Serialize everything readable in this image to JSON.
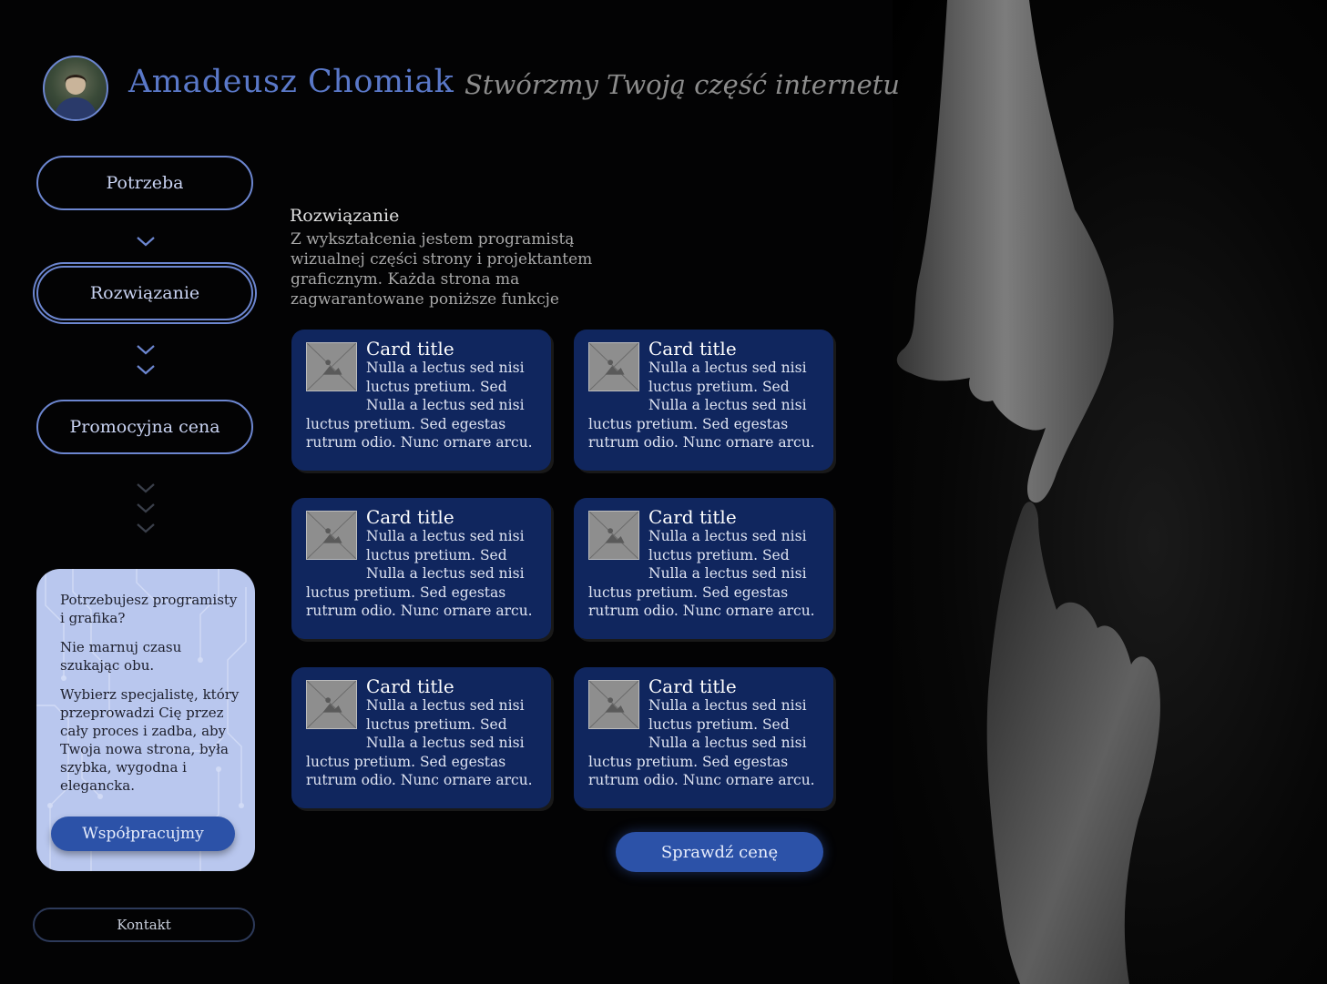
{
  "header": {
    "name": "Amadeusz Chomiak",
    "tagline": "Stwórzmy Twoją część internetu"
  },
  "nav": {
    "items": [
      {
        "label": "Potrzeba"
      },
      {
        "label": "Rozwiązanie"
      },
      {
        "label": "Promocyjna cena"
      }
    ],
    "active": "Rozwiązanie"
  },
  "promo": {
    "paragraphs": [
      "Potrzebujesz programisty i grafika?",
      "Nie marnuj czasu szukając obu.",
      "Wybierz specjalistę, który przeprowadzi Cię przez cały proces i zadba, aby Twoja nowa strona, była szybka, wygodna i elegancka."
    ],
    "button_label": "Współpracujmy"
  },
  "contact_label": "Kontakt",
  "main": {
    "title": "Rozwiązanie",
    "description": "Z wykształcenia jestem programistą wizualnej części strony i projektantem graficznym. Każda strona ma zagwarantowane poniższe funkcje",
    "cards": [
      {
        "title": "Card title",
        "text": "Nulla a lectus sed nisi luctus pretium. Sed Nulla a lectus sed nisi luctus pretium. Sed egestas rutrum odio. Nunc ornare arcu."
      },
      {
        "title": "Card title",
        "text": "Nulla a lectus sed nisi luctus pretium. Sed Nulla a lectus sed nisi luctus pretium. Sed egestas rutrum odio. Nunc ornare arcu."
      },
      {
        "title": "Card title",
        "text": "Nulla a lectus sed nisi luctus pretium. Sed Nulla a lectus sed nisi luctus pretium. Sed egestas rutrum odio. Nunc ornare arcu."
      },
      {
        "title": "Card title",
        "text": "Nulla a lectus sed nisi luctus pretium. Sed Nulla a lectus sed nisi luctus pretium. Sed egestas rutrum odio. Nunc ornare arcu."
      },
      {
        "title": "Card title",
        "text": "Nulla a lectus sed nisi luctus pretium. Sed Nulla a lectus sed nisi luctus pretium. Sed egestas rutrum odio. Nunc ornare arcu."
      },
      {
        "title": "Card title",
        "text": "Nulla a lectus sed nisi luctus pretium. Sed Nulla a lectus sed nisi luctus pretium. Sed egestas rutrum odio. Nunc ornare arcu."
      }
    ],
    "cta_label": "Sprawdź cenę"
  },
  "icons": {
    "chevron": "chevron-down-icon",
    "thumb": "image-placeholder-icon",
    "avatar": "avatar-photo",
    "hero": "reaching-hands-image"
  },
  "colors": {
    "accent": "#5a78c8",
    "outline": "#6c86d0",
    "card_bg": "#10265e",
    "button_bg": "#2c52a8",
    "promo_bg": "#b9c7ee"
  }
}
